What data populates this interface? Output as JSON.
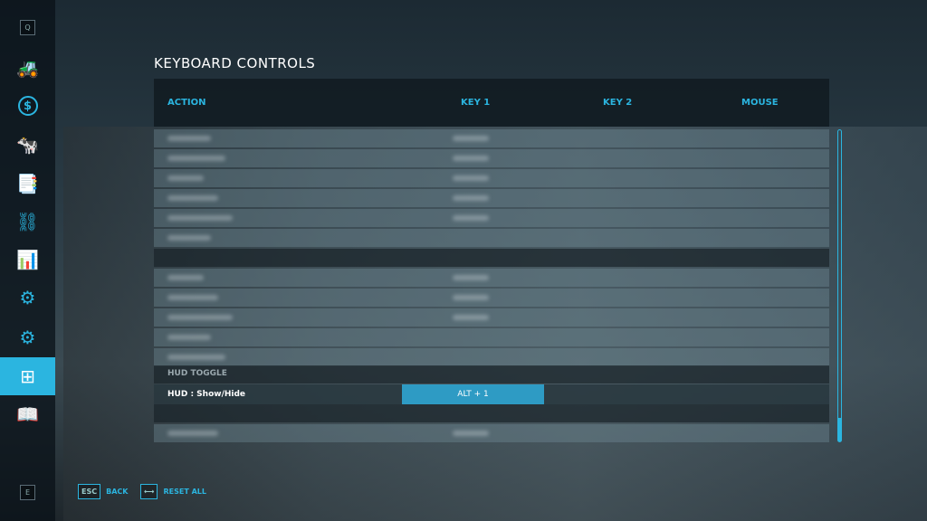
{
  "sidebar": {
    "top_key": "Q",
    "bottom_key": "E",
    "items": [
      {
        "icon": "tractor-icon"
      },
      {
        "icon": "dollar-icon"
      },
      {
        "icon": "cow-icon"
      },
      {
        "icon": "contracts-icon"
      },
      {
        "icon": "production-icon"
      },
      {
        "icon": "presentation-icon"
      },
      {
        "icon": "vehicle-settings-icon"
      },
      {
        "icon": "gear-icon"
      },
      {
        "icon": "controls-icon",
        "active": true
      },
      {
        "icon": "help-book-icon"
      }
    ]
  },
  "title": "KEYBOARD CONTROLS",
  "columns": {
    "action": "ACTION",
    "key1": "KEY 1",
    "key2": "KEY 2",
    "mouse": "MOUSE"
  },
  "section": "HUD TOGGLE",
  "selected_row": {
    "action": "HUD : Show/Hide",
    "key1": "ALT + 1"
  },
  "scroll_position": 1.0,
  "footer": {
    "back_key": "ESC",
    "back": "BACK",
    "reset_key": "⟷",
    "reset": "RESET ALL"
  },
  "colors": {
    "accent": "#2bb5e0",
    "selected_key": "#2e9bc4"
  }
}
